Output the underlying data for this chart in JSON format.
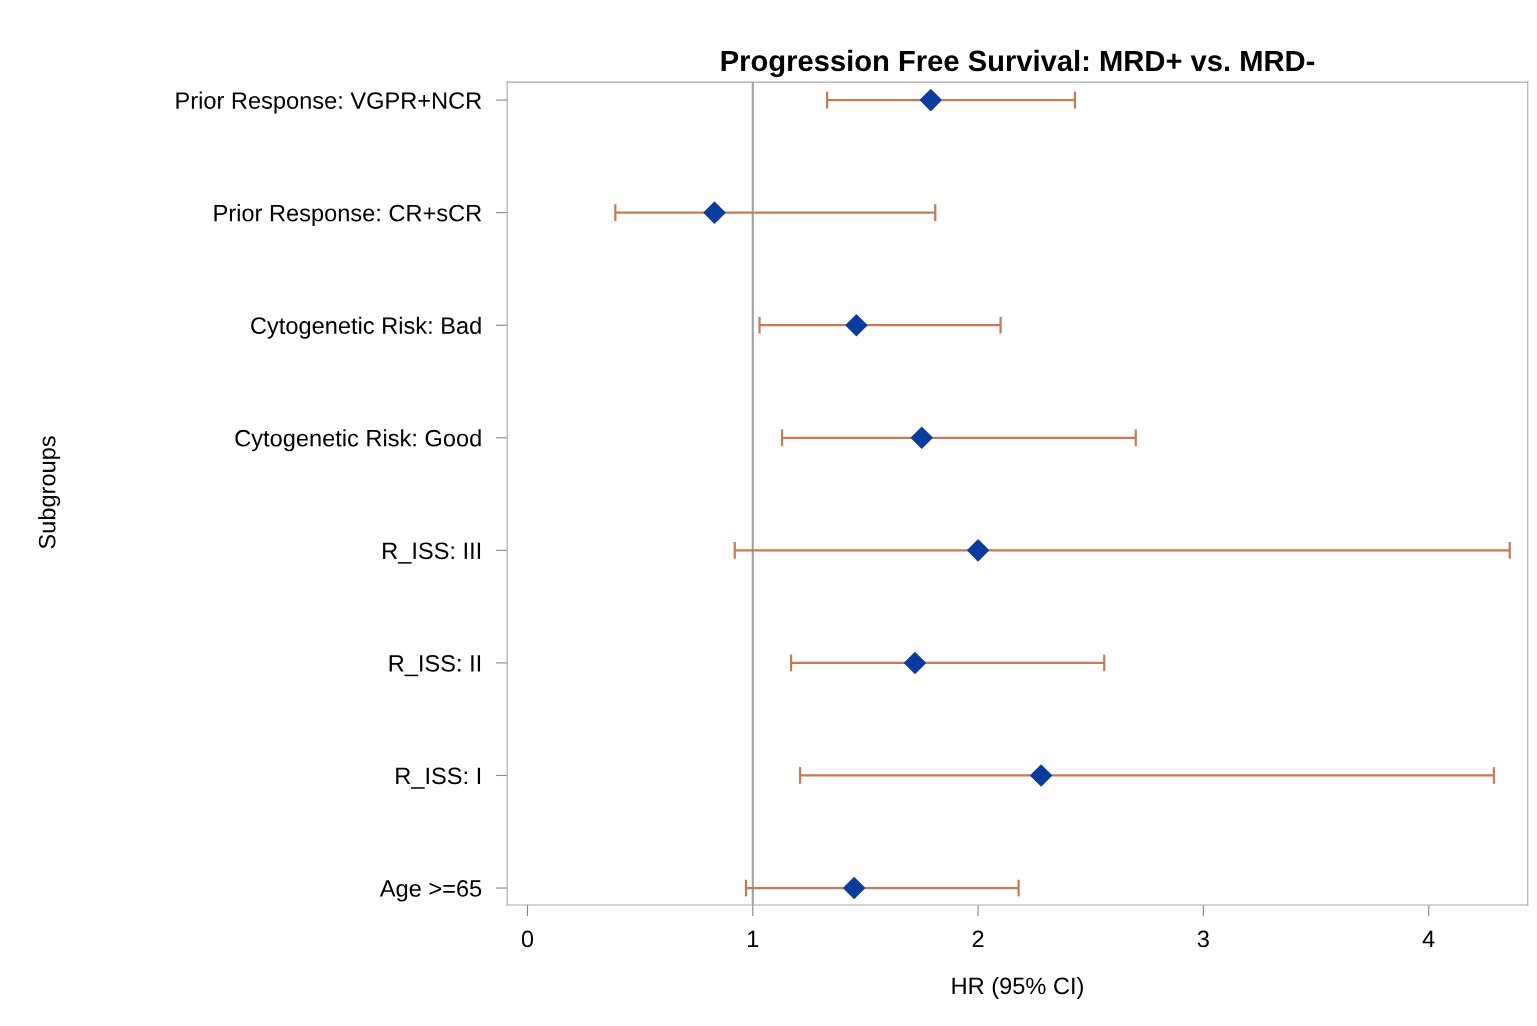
{
  "chart_data": {
    "type": "scatter",
    "orientation": "horizontal",
    "title": "Progression Free Survival: MRD+ vs. MRD-",
    "xlabel": "HR (95% CI)",
    "ylabel": "Subgroups",
    "categories": [
      "Prior Response: VGPR+NCR",
      "Prior Response: CR+sCR",
      "Cytogenetic Risk: Bad",
      "Cytogenetic Risk: Good",
      "R_ISS: III",
      "R_ISS: II",
      "R_ISS: I",
      "Age >=65"
    ],
    "color": "#0a3ca0",
    "values": [
      1.79,
      0.83,
      1.46,
      1.75,
      2.0,
      1.72,
      2.28,
      1.45
    ],
    "errors": [
      [
        1.33,
        2.43
      ],
      [
        0.39,
        1.81
      ],
      [
        1.03,
        2.1
      ],
      [
        1.13,
        2.7
      ],
      [
        0.92,
        4.36
      ],
      [
        1.17,
        2.56
      ],
      [
        1.21,
        4.29
      ],
      [
        0.97,
        2.18
      ]
    ],
    "marker": "diamond",
    "xlim": [
      -0.09,
      4.44
    ],
    "xticks": [
      0,
      1,
      2,
      3,
      4
    ],
    "ref_lines": [
      {
        "axis": "x",
        "value": 1,
        "color": "#a0a0a0"
      }
    ],
    "grid": false
  }
}
